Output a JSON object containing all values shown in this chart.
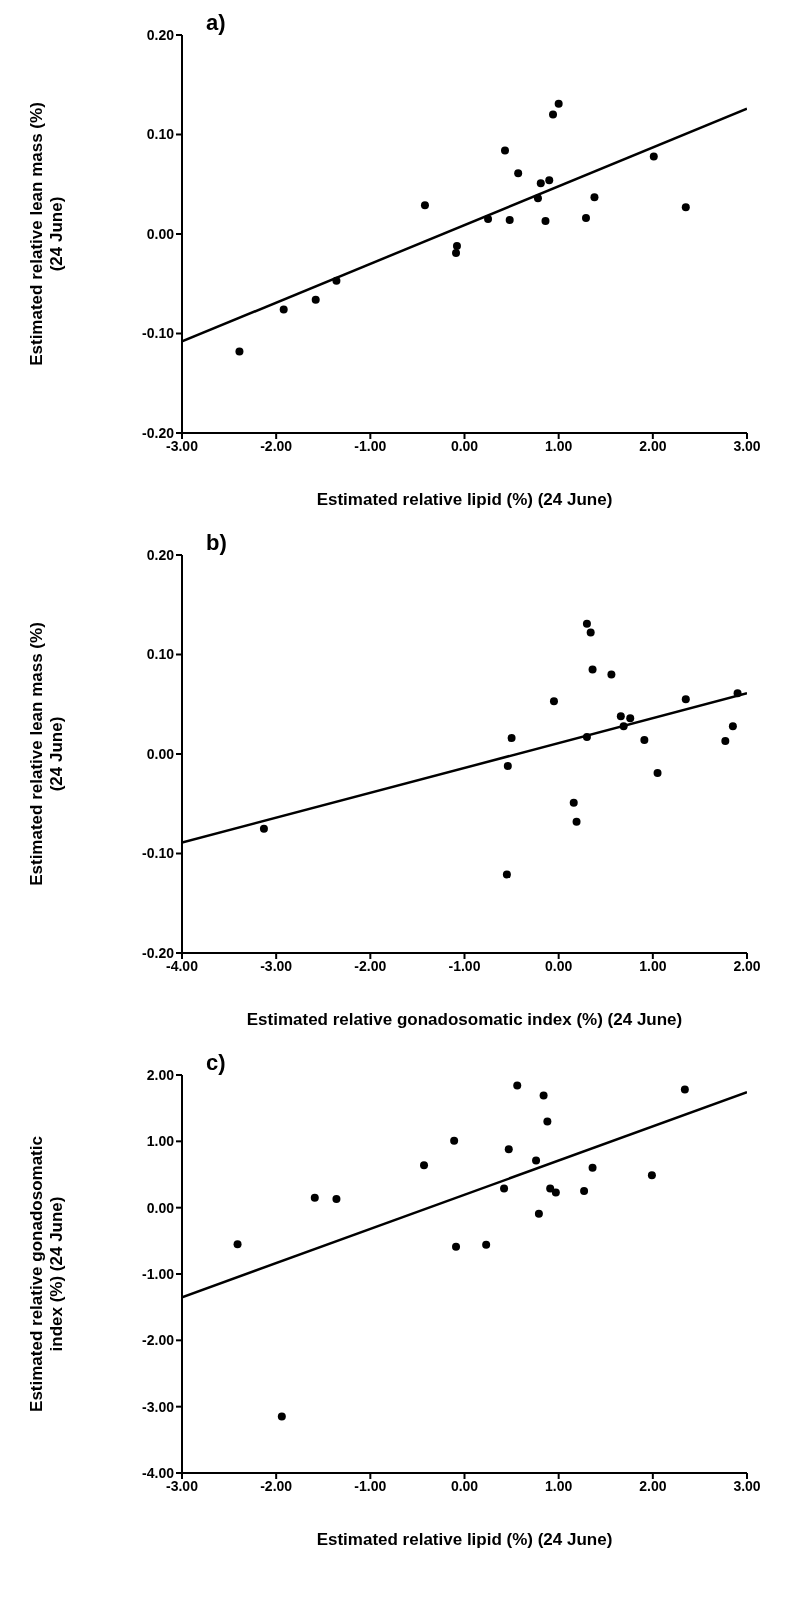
{
  "chart_data": [
    {
      "type": "scatter",
      "title": "a)",
      "xlabel": "Estimated relative lipid (%) (24 June)",
      "ylabel": "Estimated relative lean mass (%)\n(24 June)",
      "marker": "circle",
      "grid": false,
      "legend": false,
      "xlim": [
        -3,
        3
      ],
      "xticks": [
        {
          "value": -3,
          "label": "-3.00"
        },
        {
          "value": -2,
          "label": "-2.00"
        },
        {
          "value": -1,
          "label": "-1.00"
        },
        {
          "value": 0,
          "label": "0.00"
        },
        {
          "value": 1,
          "label": "1.00"
        },
        {
          "value": 2,
          "label": "2.00"
        },
        {
          "value": 3,
          "label": "3.00"
        }
      ],
      "ylim": [
        -0.2,
        0.2
      ],
      "yticks": [
        {
          "value": -0.2,
          "label": "-0.20"
        },
        {
          "value": -0.1,
          "label": "-0.10"
        },
        {
          "value": 0,
          "label": "0.00"
        },
        {
          "value": 0.1,
          "label": "0.10"
        },
        {
          "value": 0.2,
          "label": "0.20"
        }
      ],
      "series": [
        {
          "type": "scatter",
          "color": "#000000",
          "x": [
            -2.39,
            -1.92,
            -1.58,
            -1.36,
            -0.42,
            -0.09,
            -0.08,
            0.25,
            0.43,
            0.48,
            0.57,
            0.78,
            0.81,
            0.86,
            0.9,
            0.94,
            1.0,
            1.29,
            1.38,
            2.01,
            2.35
          ],
          "values": [
            -0.118,
            -0.076,
            -0.066,
            -0.047,
            0.029,
            -0.019,
            -0.012,
            0.015,
            0.084,
            0.014,
            0.061,
            0.036,
            0.051,
            0.013,
            0.054,
            0.12,
            0.131,
            0.016,
            0.037,
            0.078,
            0.027
          ]
        },
        {
          "type": "line",
          "color": "#000000",
          "marker": "none",
          "line_style": "solid",
          "x": [
            -3,
            3
          ],
          "values": [
            -0.108,
            0.126
          ]
        }
      ]
    },
    {
      "type": "scatter",
      "title": "b)",
      "xlabel": "Estimated relative gonadosomatic index (%) (24 June)",
      "ylabel": "Estimated relative lean mass (%)\n(24 June)",
      "marker": "circle",
      "grid": false,
      "legend": false,
      "xlim": [
        -4,
        2
      ],
      "xticks": [
        {
          "value": -4,
          "label": "-4.00"
        },
        {
          "value": -3,
          "label": "-3.00"
        },
        {
          "value": -2,
          "label": "-2.00"
        },
        {
          "value": -1,
          "label": "-1.00"
        },
        {
          "value": 0,
          "label": "0.00"
        },
        {
          "value": 1,
          "label": "1.00"
        },
        {
          "value": 2,
          "label": "2.00"
        }
      ],
      "ylim": [
        -0.2,
        0.2
      ],
      "yticks": [
        {
          "value": -0.2,
          "label": "-0.20"
        },
        {
          "value": -0.1,
          "label": "-0.10"
        },
        {
          "value": 0,
          "label": "0.00"
        },
        {
          "value": 0.1,
          "label": "0.10"
        },
        {
          "value": 0.2,
          "label": "0.20"
        }
      ],
      "series": [
        {
          "type": "scatter",
          "color": "#000000",
          "x": [
            -3.13,
            -0.55,
            -0.54,
            -0.5,
            -0.05,
            0.16,
            0.19,
            0.3,
            0.34,
            0.3,
            0.36,
            0.56,
            0.66,
            0.69,
            0.76,
            0.91,
            1.05,
            1.35,
            1.77,
            1.85,
            1.9
          ],
          "values": [
            -0.075,
            -0.121,
            -0.012,
            0.016,
            0.053,
            -0.049,
            -0.068,
            0.131,
            0.122,
            0.017,
            0.085,
            0.08,
            0.038,
            0.028,
            0.036,
            0.014,
            -0.019,
            0.055,
            0.013,
            0.028,
            0.061
          ]
        },
        {
          "type": "line",
          "color": "#000000",
          "marker": "none",
          "line_style": "solid",
          "x": [
            -4,
            2
          ],
          "values": [
            -0.089,
            0.061
          ]
        }
      ]
    },
    {
      "type": "scatter",
      "title": "c)",
      "xlabel": "Estimated relative lipid (%) (24 June)",
      "ylabel": "Estimated relative gonadosomatic\nindex (%) (24 June)",
      "marker": "circle",
      "grid": false,
      "legend": false,
      "xlim": [
        -3,
        3
      ],
      "xticks": [
        {
          "value": -3,
          "label": "-3.00"
        },
        {
          "value": -2,
          "label": "-2.00"
        },
        {
          "value": -1,
          "label": "-1.00"
        },
        {
          "value": 0,
          "label": "0.00"
        },
        {
          "value": 1,
          "label": "1.00"
        },
        {
          "value": 2,
          "label": "2.00"
        },
        {
          "value": 3,
          "label": "3.00"
        }
      ],
      "ylim": [
        -4,
        2
      ],
      "yticks": [
        {
          "value": -4,
          "label": "-4.00"
        },
        {
          "value": -3,
          "label": "-3.00"
        },
        {
          "value": -2,
          "label": "-2.00"
        },
        {
          "value": -1,
          "label": "-1.00"
        },
        {
          "value": 0,
          "label": "0.00"
        },
        {
          "value": 1,
          "label": "1.00"
        },
        {
          "value": 2,
          "label": "2.00"
        }
      ],
      "series": [
        {
          "type": "scatter",
          "color": "#000000",
          "x": [
            -2.41,
            -1.94,
            -1.59,
            -1.36,
            -0.43,
            -0.11,
            -0.09,
            0.23,
            0.42,
            0.47,
            0.56,
            0.76,
            0.79,
            0.84,
            0.88,
            0.91,
            0.97,
            1.27,
            1.36,
            1.99,
            2.34
          ],
          "values": [
            -0.55,
            -3.15,
            0.15,
            0.13,
            0.64,
            1.01,
            -0.59,
            -0.56,
            0.29,
            0.88,
            1.84,
            0.71,
            -0.09,
            1.69,
            1.3,
            0.29,
            0.23,
            0.25,
            0.6,
            0.49,
            1.78
          ]
        },
        {
          "type": "line",
          "color": "#000000",
          "marker": "none",
          "line_style": "solid",
          "x": [
            -3,
            3
          ],
          "values": [
            -1.35,
            1.74
          ]
        }
      ]
    }
  ]
}
